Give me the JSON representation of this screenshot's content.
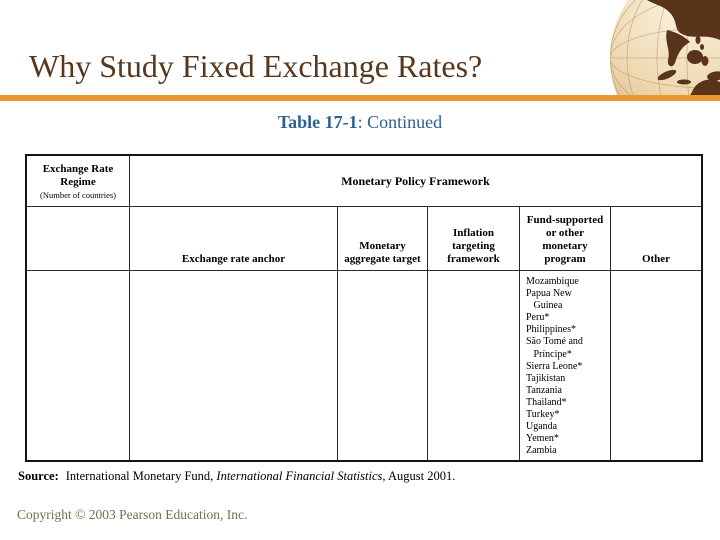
{
  "slide": {
    "title": "Why Study Fixed Exchange Rates?",
    "caption": {
      "bold": "Table 17-1",
      "rest": ": Continued"
    },
    "copyright": "Copyright © 2003 Pearson Education, Inc."
  },
  "icons": {
    "globe": "sepia-earth-globe"
  },
  "colors": {
    "title_brown": "#58371D",
    "accent_bar_orange": "#E8992D",
    "caption_blue": "#2F5F8F",
    "copyright_tan": "#756E52",
    "table_border": "#151515"
  },
  "table": {
    "header": {
      "col1_line1": "Exchange Rate",
      "col1_line2": "Regime",
      "col1_note": "(Number of countries)",
      "span": "Monetary Policy Framework"
    },
    "subheaders": [
      "Exchange rate anchor",
      "Monetary aggregate target",
      "Inflation targeting framework",
      "Fund-supported or other monetary program",
      "Other"
    ],
    "data_row": {
      "exchange_rate_regime": "",
      "exchange_rate_anchor": "",
      "monetary_aggregate_target": "",
      "inflation_targeting_framework": "",
      "fund_supported_countries": [
        "Mozambique",
        "Papua New",
        "   Guinea",
        "Peru*",
        "Philippines*",
        "São Tomé and",
        "   Príncipe*",
        "Sierra Leone*",
        "Tajikistan",
        "Tanzania",
        "Thailand*",
        "Turkey*",
        "Uganda",
        "Yemen*",
        "Zambia"
      ],
      "other": ""
    }
  },
  "source": {
    "label": "Source:",
    "text_before_italic": "International Monetary Fund, ",
    "italic": "International Financial Statistics,",
    "text_after_italic": " August 2001."
  }
}
